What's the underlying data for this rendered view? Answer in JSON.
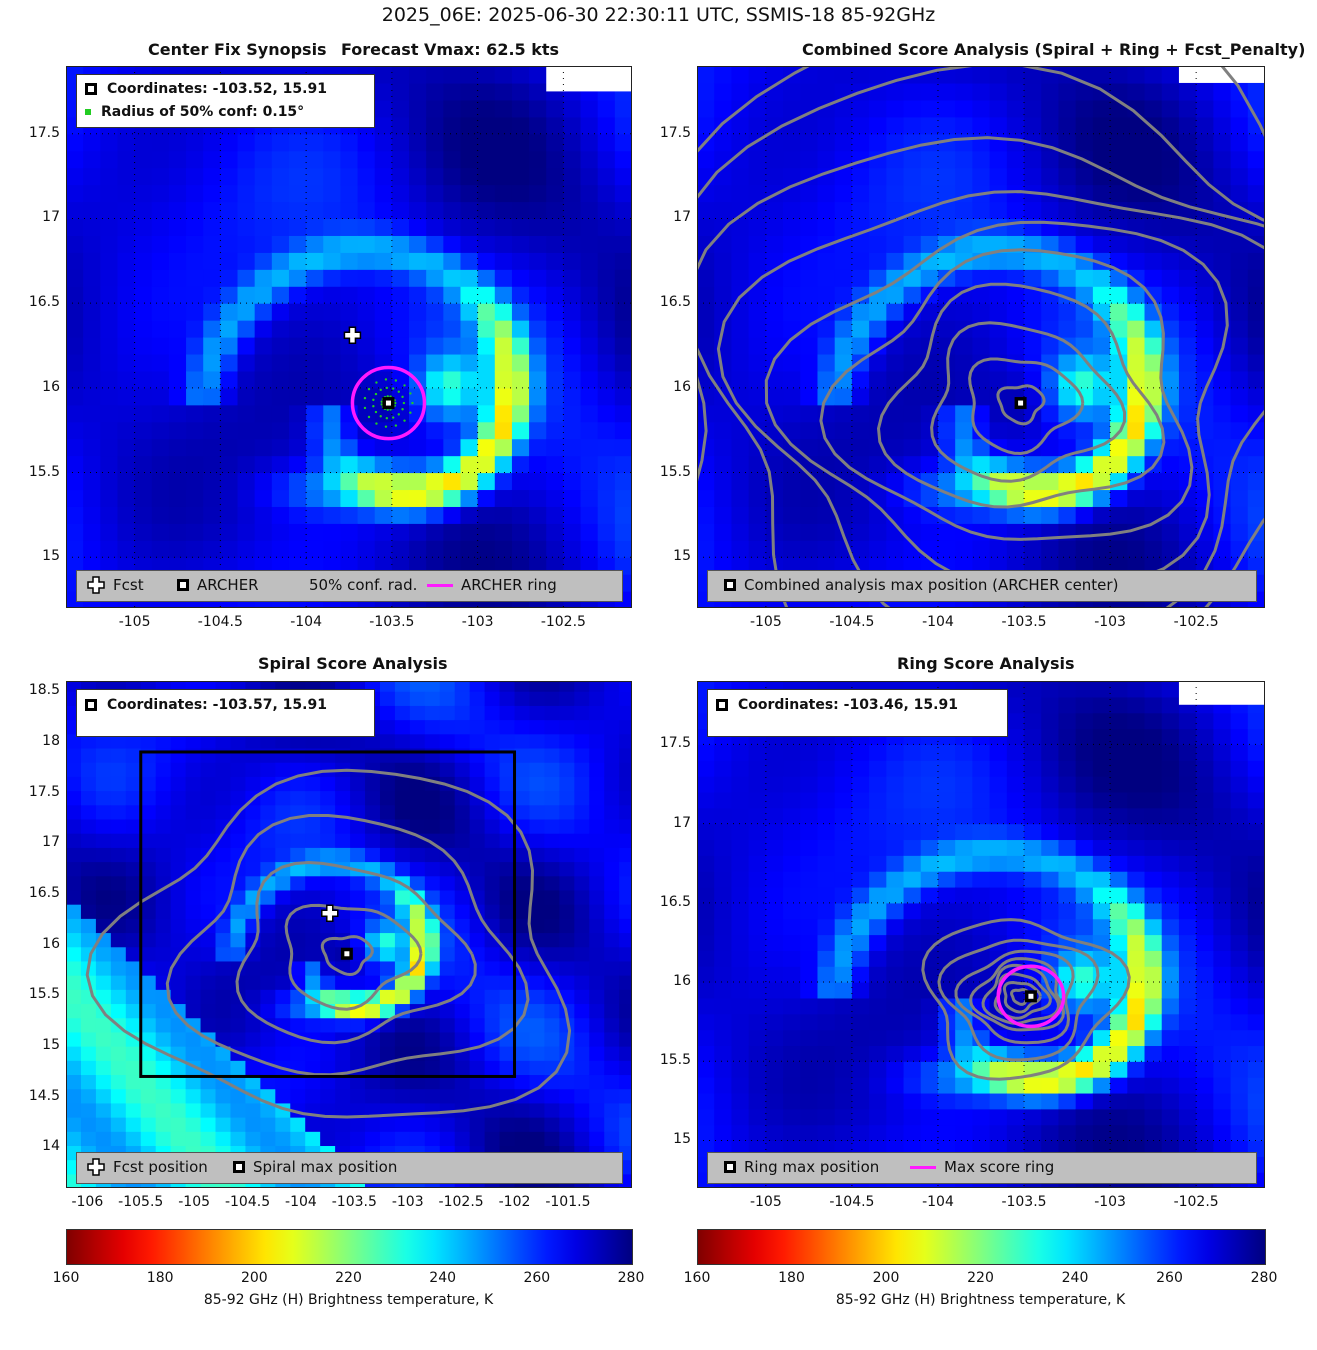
{
  "suptitle": "2025_06E: 2025-06-30 22:30:11 UTC, SSMIS-18 85-92GHz",
  "colors": {
    "ring": "#ff1aff",
    "contour": "#808080",
    "box": "#000000",
    "conf_dot": "#22cc22",
    "legend_bg": "#bfbfbf"
  },
  "colorbar": {
    "ticks": [
      "160",
      "180",
      "200",
      "220",
      "240",
      "260",
      "280"
    ],
    "label": "85-92 GHz (H) Brightness temperature, K",
    "colormap": "jet_reversed",
    "range": [
      160,
      280
    ]
  },
  "panels": {
    "synopsis": {
      "title_left": "Center Fix Synopsis",
      "title_right": "Forecast Vmax: 62.5 kts",
      "info_line1": "Coordinates: -103.52, 15.91",
      "info_line2": "Radius of 50% conf: 0.15°",
      "legend": {
        "fcst": "Fcst",
        "archer": "ARCHER",
        "conf": "50% conf. rad.",
        "ring": "ARCHER ring"
      },
      "xticks": [
        "-105",
        "-104.5",
        "-104",
        "-103.5",
        "-103",
        "-102.5"
      ],
      "yticks": [
        "17.5",
        "17",
        "16.5",
        "16",
        "15.5",
        "15"
      ]
    },
    "combined": {
      "title": "Combined Score Analysis (Spiral + Ring + Fcst_Penalty)",
      "legend": {
        "max": "Combined analysis max position (ARCHER center)"
      },
      "xticks": [
        "-105",
        "-104.5",
        "-104",
        "-103.5",
        "-103",
        "-102.5"
      ],
      "yticks": [
        "17.5",
        "17",
        "16.5",
        "16",
        "15.5",
        "15"
      ]
    },
    "spiral": {
      "title": "Spiral Score Analysis",
      "info_line1": "Coordinates: -103.57, 15.91",
      "legend": {
        "fcst": "Fcst position",
        "max": "Spiral max position"
      },
      "xticks": [
        "-106",
        "-105.5",
        "-105",
        "-104.5",
        "-104",
        "-103.5",
        "-103",
        "-102.5",
        "-102",
        "-101.5"
      ],
      "yticks": [
        "18.5",
        "18",
        "17.5",
        "17",
        "16.5",
        "16",
        "15.5",
        "15",
        "14.5",
        "14"
      ]
    },
    "ring": {
      "title": "Ring Score Analysis",
      "info_line1": "Coordinates: -103.46, 15.91",
      "legend": {
        "max": "Ring max position",
        "ring": "Max score ring"
      },
      "xticks": [
        "-105",
        "-104.5",
        "-104",
        "-103.5",
        "-103",
        "-102.5"
      ],
      "yticks": [
        "17.5",
        "17",
        "16.5",
        "16",
        "15.5",
        "15"
      ]
    }
  },
  "chart_data": [
    {
      "type": "heatmap",
      "title": "Center Fix Synopsis     Forecast Vmax: 62.5 kts",
      "x_range": [
        -105.4,
        -102.1
      ],
      "y_range": [
        14.7,
        17.9
      ],
      "archer_center": [
        -103.52,
        15.91
      ],
      "forecast_position": [
        -103.73,
        16.31
      ],
      "conf_radius_deg": 0.15,
      "colorbar_range": [
        160,
        280
      ]
    },
    {
      "type": "heatmap",
      "title": "Combined Score Analysis (Spiral + Ring + Fcst_Penalty)",
      "x_range": [
        -105.4,
        -102.1
      ],
      "y_range": [
        14.7,
        17.9
      ],
      "max_position": [
        -103.52,
        15.91
      ],
      "contours": "combined score"
    },
    {
      "type": "heatmap",
      "title": "Spiral Score Analysis",
      "x_range": [
        -106.2,
        -100.9
      ],
      "y_range": [
        13.6,
        18.6
      ],
      "max_position": [
        -103.57,
        15.91
      ],
      "forecast_position": [
        -103.73,
        16.31
      ],
      "search_box": {
        "lon": [
          -105.5,
          -102.0
        ],
        "lat": [
          14.7,
          17.9
        ]
      }
    },
    {
      "type": "heatmap",
      "title": "Ring Score Analysis",
      "x_range": [
        -105.4,
        -102.1
      ],
      "y_range": [
        14.7,
        17.9
      ],
      "max_position": [
        -103.46,
        15.91
      ],
      "ring_radius_deg": 0.19
    }
  ]
}
